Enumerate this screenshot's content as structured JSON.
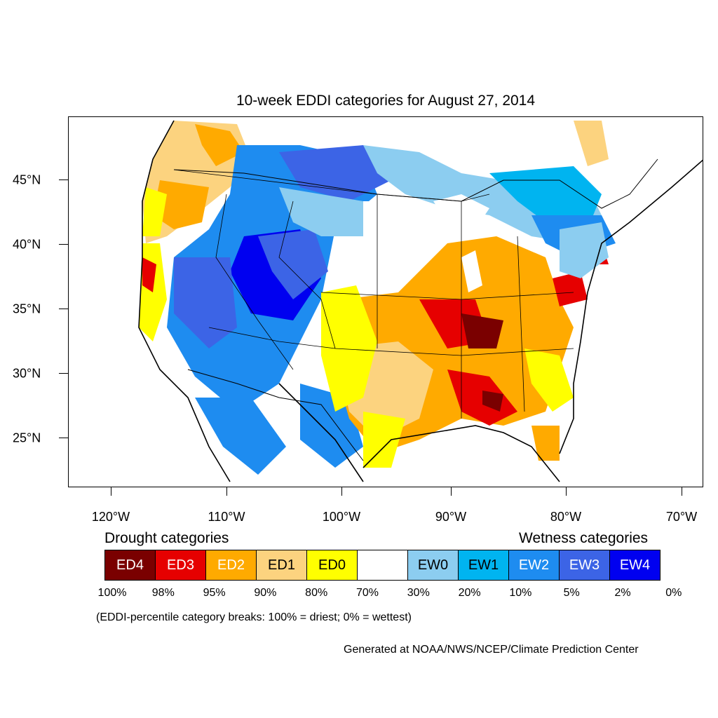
{
  "title": "10-week EDDI categories for August 27, 2014",
  "map": {
    "y_axis_labels": [
      "45°N",
      "40°N",
      "35°N",
      "30°N",
      "25°N"
    ],
    "x_axis_labels": [
      "120°W",
      "110°W",
      "100°W",
      "90°W",
      "80°W",
      "70°W"
    ]
  },
  "legend": {
    "drought_heading": "Drought categories",
    "wetness_heading": "Wetness categories",
    "categories": [
      {
        "label": "ED4",
        "color": "#7a0000",
        "text_color": "#ffffff"
      },
      {
        "label": "ED3",
        "color": "#e60000",
        "text_color": "#ffffff"
      },
      {
        "label": "ED2",
        "color": "#ffaa00",
        "text_color": "#ffffff"
      },
      {
        "label": "ED1",
        "color": "#fcd37f",
        "text_color": "#000000"
      },
      {
        "label": "ED0",
        "color": "#ffff00",
        "text_color": "#000000"
      },
      {
        "label": "",
        "color": "#ffffff",
        "text_color": "#000000"
      },
      {
        "label": "EW0",
        "color": "#8ccdf0",
        "text_color": "#000000"
      },
      {
        "label": "EW1",
        "color": "#00b4f0",
        "text_color": "#000000"
      },
      {
        "label": "EW2",
        "color": "#1e8cf0",
        "text_color": "#ffffff"
      },
      {
        "label": "EW3",
        "color": "#3c64e6",
        "text_color": "#ffffff"
      },
      {
        "label": "EW4",
        "color": "#0000f0",
        "text_color": "#ffffff"
      }
    ],
    "percent_breaks": [
      "100%",
      "98%",
      "95%",
      "90%",
      "80%",
      "70%",
      "30%",
      "20%",
      "10%",
      "5%",
      "2%",
      "0%"
    ]
  },
  "note": "(EDDI-percentile category breaks: 100% = driest; 0% = wettest)",
  "credit": "Generated at NOAA/NWS/NCEP/Climate Prediction Center"
}
